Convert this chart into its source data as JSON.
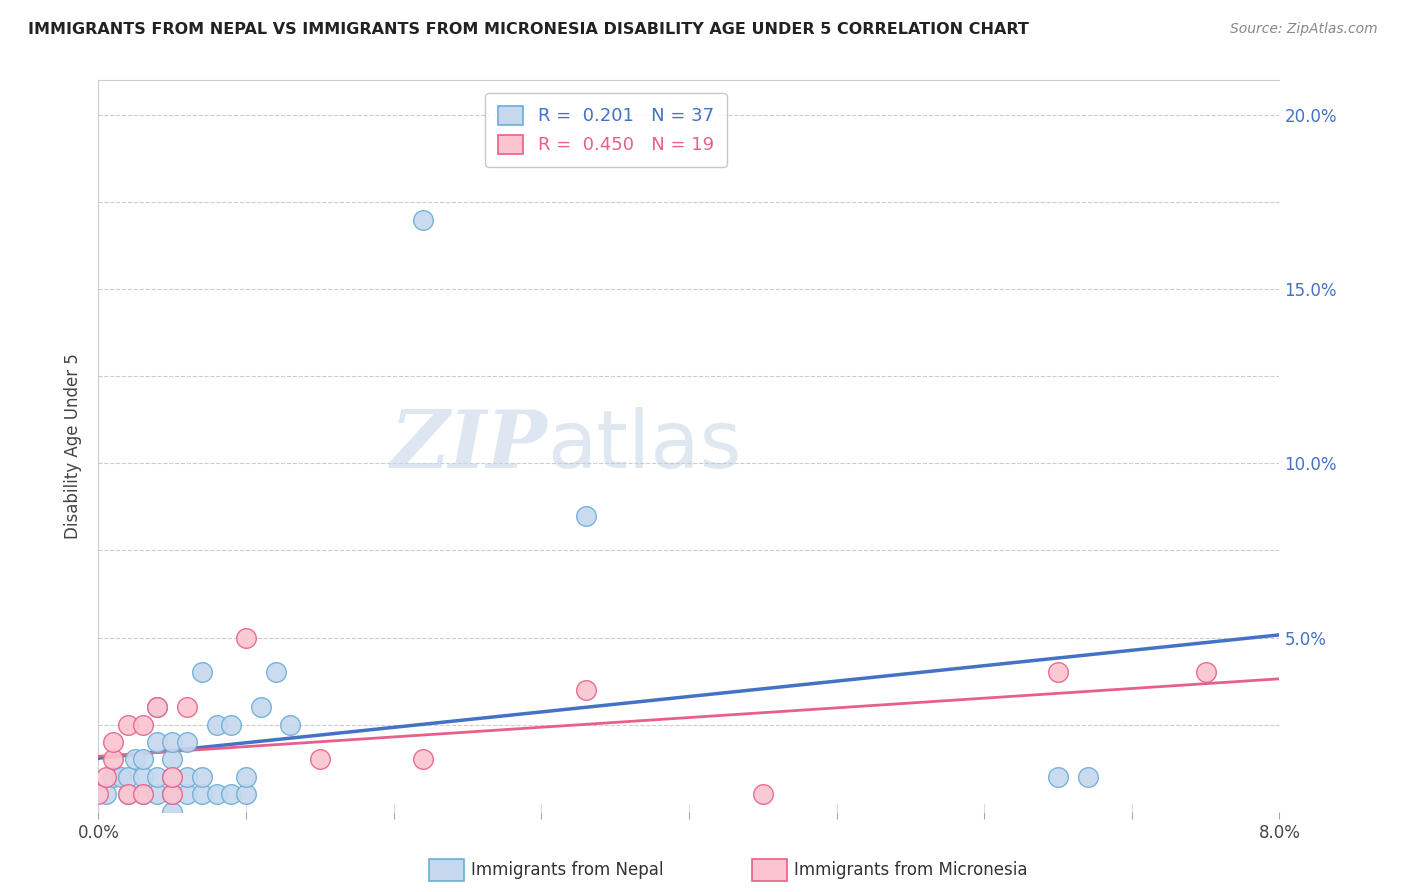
{
  "title": "IMMIGRANTS FROM NEPAL VS IMMIGRANTS FROM MICRONESIA DISABILITY AGE UNDER 5 CORRELATION CHART",
  "source": "Source: ZipAtlas.com",
  "ylabel_label": "Disability Age Under 5",
  "watermark_zip": "ZIP",
  "watermark_atlas": "atlas",
  "nepal_R": "0.201",
  "nepal_N": "37",
  "micronesia_R": "0.450",
  "micronesia_N": "19",
  "xlim": [
    0.0,
    0.08
  ],
  "ylim": [
    0.0,
    0.21
  ],
  "color_nepal_fill": "#c5d8ee",
  "color_nepal_edge": "#6baed6",
  "color_micronesia_fill": "#fbc4d0",
  "color_micronesia_edge": "#e8608a",
  "color_nepal_line": "#4472c4",
  "color_micronesia_line": "#e8608a",
  "nepal_x": [
    0.0005,
    0.001,
    0.0015,
    0.002,
    0.002,
    0.0025,
    0.003,
    0.003,
    0.003,
    0.004,
    0.004,
    0.004,
    0.004,
    0.005,
    0.005,
    0.005,
    0.005,
    0.005,
    0.006,
    0.006,
    0.006,
    0.007,
    0.007,
    0.007,
    0.008,
    0.008,
    0.009,
    0.009,
    0.01,
    0.01,
    0.011,
    0.012,
    0.013,
    0.022,
    0.033,
    0.065,
    0.067
  ],
  "nepal_y": [
    0.005,
    0.01,
    0.01,
    0.005,
    0.01,
    0.015,
    0.005,
    0.01,
    0.015,
    0.005,
    0.01,
    0.02,
    0.03,
    0.0,
    0.005,
    0.01,
    0.015,
    0.02,
    0.005,
    0.01,
    0.02,
    0.005,
    0.01,
    0.04,
    0.005,
    0.025,
    0.005,
    0.025,
    0.005,
    0.01,
    0.03,
    0.04,
    0.025,
    0.17,
    0.085,
    0.01,
    0.01
  ],
  "micronesia_x": [
    0.0,
    0.0005,
    0.001,
    0.001,
    0.002,
    0.002,
    0.003,
    0.003,
    0.004,
    0.005,
    0.005,
    0.006,
    0.01,
    0.015,
    0.022,
    0.033,
    0.045,
    0.065,
    0.075
  ],
  "micronesia_y": [
    0.005,
    0.01,
    0.015,
    0.02,
    0.005,
    0.025,
    0.005,
    0.025,
    0.03,
    0.005,
    0.01,
    0.03,
    0.05,
    0.015,
    0.015,
    0.035,
    0.005,
    0.04,
    0.04
  ]
}
